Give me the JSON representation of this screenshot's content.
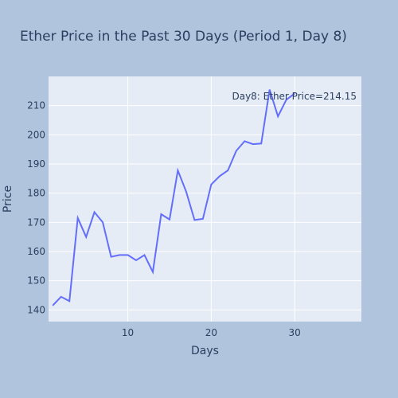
{
  "chart_data": {
    "type": "line",
    "title": "Ether Price in the Past 30 Days (Period 1, Day 8)",
    "xlabel": "Days",
    "ylabel": "Price",
    "xlim": [
      0.5,
      38
    ],
    "ylim": [
      136,
      220
    ],
    "x_ticks": [
      10,
      20,
      30
    ],
    "y_ticks": [
      140,
      150,
      160,
      170,
      180,
      190,
      200,
      210
    ],
    "grid": true,
    "colors": {
      "paper": "#b0c4de",
      "plot_bg": "#e5ecf6",
      "grid": "#ffffff",
      "line": "#636efa",
      "text": "#2a3f5f"
    },
    "annotation": "Day8: Ether Price=214.15",
    "series": [
      {
        "x": [
          1,
          2,
          3,
          4,
          5,
          6,
          7,
          8,
          9,
          10,
          11,
          12,
          13,
          14,
          15,
          16,
          17,
          18,
          19,
          20,
          21,
          22,
          23,
          24,
          25,
          26,
          27,
          28,
          29,
          30
        ],
        "values": [
          141.5,
          144.5,
          143,
          171.5,
          165,
          173.5,
          170,
          158.2,
          158.8,
          158.8,
          157,
          158.8,
          153,
          172.8,
          171,
          187.8,
          180.5,
          170.8,
          171.2,
          183,
          185.8,
          187.8,
          194.5,
          197.8,
          196.8,
          197,
          215.5,
          206.3,
          212,
          214.15
        ]
      }
    ]
  }
}
